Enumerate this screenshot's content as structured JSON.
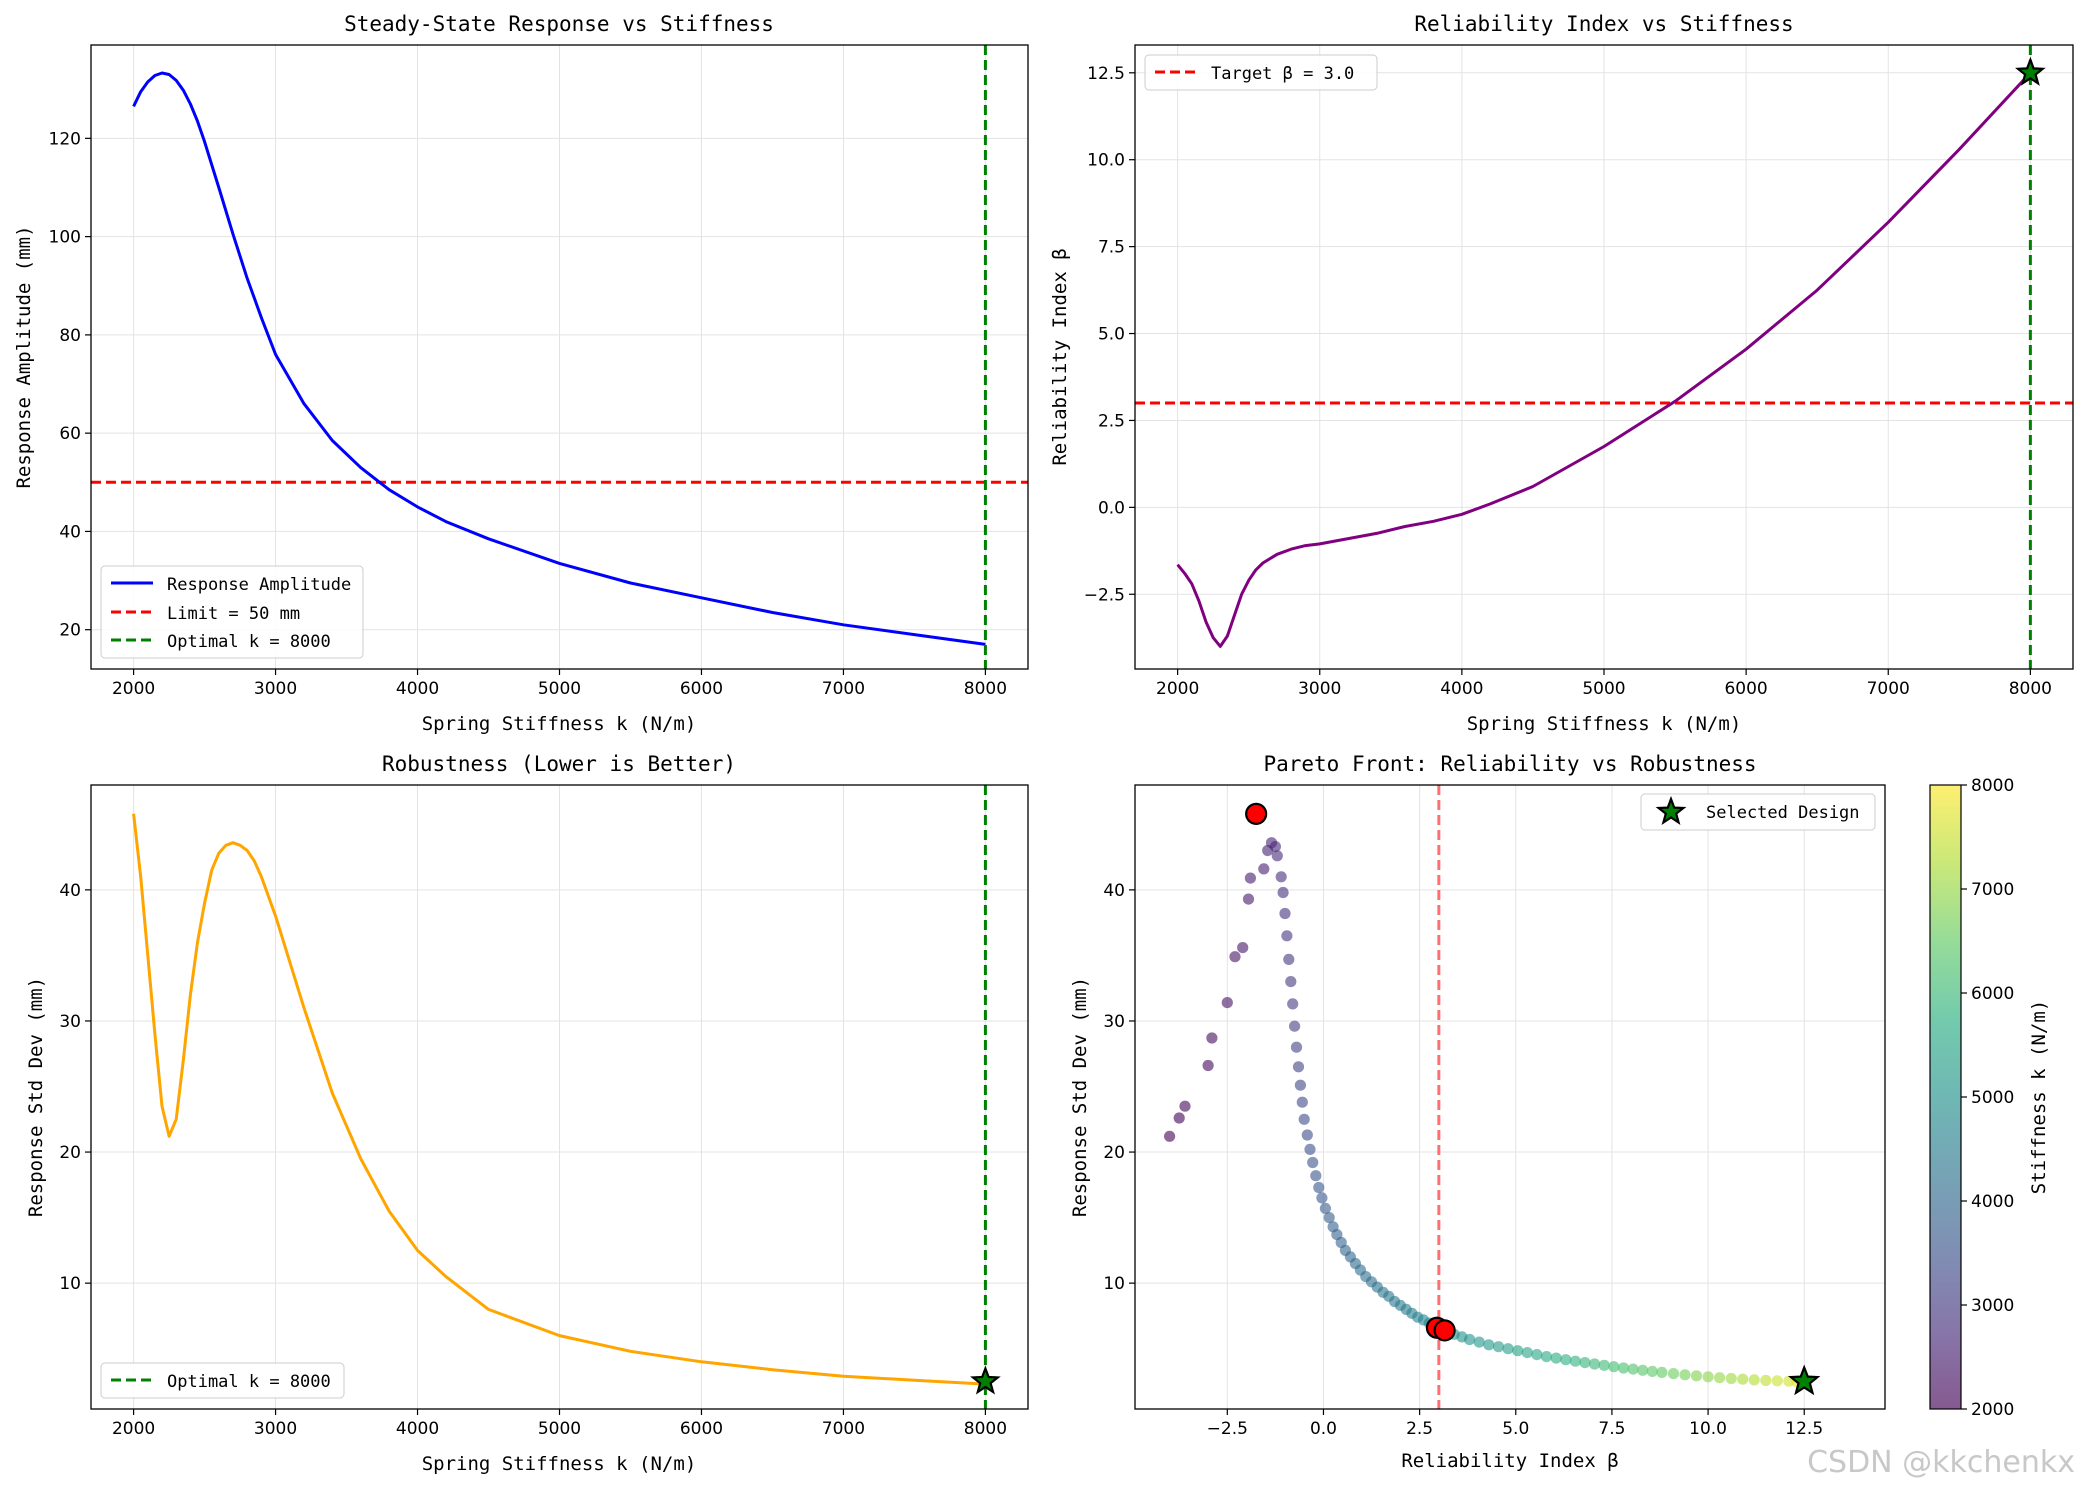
{
  "watermark": "CSDN @kkchenkx",
  "chart_data": [
    {
      "id": "p1",
      "type": "line",
      "title": "Steady-State Response vs Stiffness",
      "xlabel": "Spring Stiffness k (N/m)",
      "ylabel": "Response Amplitude (mm)",
      "xlim": [
        1700,
        8300
      ],
      "ylim": [
        12,
        139
      ],
      "xticks": [
        2000,
        3000,
        4000,
        5000,
        6000,
        7000,
        8000
      ],
      "yticks": [
        20,
        40,
        60,
        80,
        100,
        120
      ],
      "series": [
        {
          "name": "Response Amplitude",
          "color": "#0000ff",
          "x": [
            2000,
            2050,
            2100,
            2150,
            2200,
            2250,
            2300,
            2350,
            2400,
            2450,
            2500,
            2600,
            2700,
            2800,
            2900,
            3000,
            3200,
            3400,
            3600,
            3800,
            4000,
            4200,
            4500,
            5000,
            5500,
            6000,
            6500,
            7000,
            7500,
            8000
          ],
          "y": [
            126.5,
            129.5,
            131.5,
            132.8,
            133.3,
            133.0,
            131.8,
            129.8,
            127.0,
            123.5,
            119.3,
            110.0,
            100.5,
            91.5,
            83.5,
            76.0,
            66.0,
            58.5,
            53.0,
            48.5,
            45.0,
            42.0,
            38.5,
            33.5,
            29.5,
            26.5,
            23.5,
            21.0,
            19.0,
            17.0
          ]
        }
      ],
      "hlines": [
        {
          "name": "Limit = 50 mm",
          "y": 50,
          "color": "#ff0000"
        }
      ],
      "vlines": [
        {
          "name": "Optimal k = 8000",
          "x": 8000,
          "color": "#008000"
        }
      ],
      "legend": {
        "position": "lower-left",
        "entries": [
          {
            "label": "Response Amplitude",
            "color": "#0000ff",
            "style": "solid"
          },
          {
            "label": "Limit = 50 mm",
            "color": "#ff0000",
            "style": "dashed"
          },
          {
            "label": "Optimal k = 8000",
            "color": "#008000",
            "style": "dashed"
          }
        ]
      }
    },
    {
      "id": "p2",
      "type": "line",
      "title": "Reliability Index vs Stiffness",
      "xlabel": "Spring Stiffness k (N/m)",
      "ylabel": "Reliability Index β",
      "xlim": [
        1700,
        8300
      ],
      "ylim": [
        -4.65,
        13.3
      ],
      "xticks": [
        2000,
        3000,
        4000,
        5000,
        6000,
        7000,
        8000
      ],
      "yticks": [
        -2.5,
        0.0,
        2.5,
        5.0,
        7.5,
        10.0,
        12.5
      ],
      "ytick_labels": [
        "−2.5",
        "0.0",
        "2.5",
        "5.0",
        "7.5",
        "10.0",
        "12.5"
      ],
      "series": [
        {
          "name": "Reliability Index β",
          "color": "#800080",
          "x": [
            2000,
            2050,
            2100,
            2150,
            2200,
            2250,
            2300,
            2350,
            2400,
            2450,
            2500,
            2550,
            2600,
            2700,
            2800,
            2900,
            3000,
            3200,
            3400,
            3600,
            3800,
            4000,
            4200,
            4500,
            5000,
            5500,
            6000,
            6500,
            7000,
            7500,
            8000
          ],
          "y": [
            -1.65,
            -1.9,
            -2.2,
            -2.7,
            -3.3,
            -3.75,
            -4.0,
            -3.7,
            -3.1,
            -2.5,
            -2.1,
            -1.8,
            -1.6,
            -1.35,
            -1.2,
            -1.1,
            -1.05,
            -0.9,
            -0.75,
            -0.55,
            -0.4,
            -0.2,
            0.1,
            0.6,
            1.75,
            3.05,
            4.55,
            6.25,
            8.2,
            10.3,
            12.5
          ]
        }
      ],
      "hlines": [
        {
          "name": "Target β = 3.0",
          "y": 3.0,
          "color": "#ff0000"
        }
      ],
      "vlines": [
        {
          "name": "Optimal k",
          "x": 8000,
          "color": "#008000"
        }
      ],
      "markers": [
        {
          "x": 8000,
          "y": 12.5,
          "shape": "star",
          "color": "#008000"
        }
      ],
      "legend": {
        "position": "upper-left",
        "entries": [
          {
            "label": "Target β = 3.0",
            "color": "#ff0000",
            "style": "dashed"
          }
        ]
      }
    },
    {
      "id": "p3",
      "type": "line",
      "title": "Robustness (Lower is Better)",
      "xlabel": "Spring Stiffness k (N/m)",
      "ylabel": "Response Std Dev (mm)",
      "xlim": [
        1700,
        8300
      ],
      "ylim": [
        0.4,
        48.0
      ],
      "xticks": [
        2000,
        3000,
        4000,
        5000,
        6000,
        7000,
        8000
      ],
      "yticks": [
        10,
        20,
        30,
        40
      ],
      "series": [
        {
          "name": "Response Std Dev",
          "color": "#ffa500",
          "x": [
            2000,
            2050,
            2100,
            2150,
            2200,
            2250,
            2300,
            2350,
            2400,
            2450,
            2500,
            2550,
            2600,
            2650,
            2700,
            2750,
            2800,
            2850,
            2900,
            3000,
            3200,
            3400,
            3600,
            3800,
            4000,
            4200,
            4500,
            5000,
            5500,
            6000,
            6500,
            7000,
            7500,
            8000
          ],
          "y": [
            45.8,
            41.0,
            35.0,
            29.0,
            23.5,
            21.2,
            22.5,
            27.0,
            32.0,
            36.0,
            39.0,
            41.5,
            42.8,
            43.4,
            43.6,
            43.4,
            43.0,
            42.2,
            41.0,
            38.0,
            31.0,
            24.5,
            19.5,
            15.5,
            12.5,
            10.5,
            8.0,
            6.0,
            4.8,
            4.0,
            3.4,
            2.9,
            2.6,
            2.3
          ]
        }
      ],
      "vlines": [
        {
          "name": "Optimal k = 8000",
          "x": 8000,
          "color": "#008000"
        }
      ],
      "markers": [
        {
          "x": 8000,
          "y": 2.5,
          "shape": "star",
          "color": "#008000"
        }
      ],
      "legend": {
        "position": "lower-left",
        "entries": [
          {
            "label": "Optimal k = 8000",
            "color": "#008000",
            "style": "dashed"
          }
        ]
      }
    },
    {
      "id": "p4",
      "type": "scatter",
      "title": "Pareto Front: Reliability vs Robustness",
      "xlabel": "Reliability Index β",
      "ylabel": "Response Std Dev (mm)",
      "xlim": [
        -4.9,
        14.6
      ],
      "ylim": [
        0.4,
        48.0
      ],
      "xticks": [
        -2.5,
        0.0,
        2.5,
        5.0,
        7.5,
        10.0,
        12.5
      ],
      "xtick_labels": [
        "−2.5",
        "0.0",
        "2.5",
        "5.0",
        "7.5",
        "10.0",
        "12.5"
      ],
      "yticks": [
        10,
        20,
        30,
        40
      ],
      "colorbar": {
        "label": "Stiffness k (N/m)",
        "min": 2000,
        "max": 8000,
        "ticks": [
          2000,
          3000,
          4000,
          5000,
          6000,
          7000,
          8000
        ],
        "colormap": "viridis"
      },
      "vline": {
        "x": 3.0,
        "color": "#ff7070"
      },
      "highlight_points": [
        {
          "x": -1.75,
          "y": 45.8
        },
        {
          "x": 2.95,
          "y": 6.6
        },
        {
          "x": 3.15,
          "y": 6.4
        }
      ],
      "selected": {
        "x": 12.5,
        "y": 2.5,
        "label": "Selected Design"
      },
      "legend": {
        "position": "upper-right",
        "entries": [
          {
            "label": "Selected Design",
            "shape": "star",
            "color": "#008000"
          }
        ]
      },
      "points": [
        {
          "k": 2000,
          "beta": -4.0,
          "sd": 21.2
        },
        {
          "k": 2050,
          "beta": -3.75,
          "sd": 22.6
        },
        {
          "k": 2100,
          "beta": -3.6,
          "sd": 23.5
        },
        {
          "k": 2150,
          "beta": -3.0,
          "sd": 26.6
        },
        {
          "k": 2200,
          "beta": -2.9,
          "sd": 28.7
        },
        {
          "k": 2250,
          "beta": -2.5,
          "sd": 31.4
        },
        {
          "k": 2300,
          "beta": -2.3,
          "sd": 34.9
        },
        {
          "k": 2350,
          "beta": -2.1,
          "sd": 35.6
        },
        {
          "k": 2400,
          "beta": -1.95,
          "sd": 39.3
        },
        {
          "k": 2450,
          "beta": -1.9,
          "sd": 40.9
        },
        {
          "k": 2500,
          "beta": -1.55,
          "sd": 41.6
        },
        {
          "k": 2550,
          "beta": -1.45,
          "sd": 43.0
        },
        {
          "k": 2600,
          "beta": -1.35,
          "sd": 43.6
        },
        {
          "k": 2650,
          "beta": -1.25,
          "sd": 43.3
        },
        {
          "k": 2700,
          "beta": -1.2,
          "sd": 42.6
        },
        {
          "k": 2750,
          "beta": -1.1,
          "sd": 41.0
        },
        {
          "k": 2800,
          "beta": -1.05,
          "sd": 39.8
        },
        {
          "k": 2850,
          "beta": -1.0,
          "sd": 38.2
        },
        {
          "k": 2900,
          "beta": -0.95,
          "sd": 36.5
        },
        {
          "k": 2950,
          "beta": -0.9,
          "sd": 34.7
        },
        {
          "k": 3000,
          "beta": -0.85,
          "sd": 33.0
        },
        {
          "k": 3050,
          "beta": -0.8,
          "sd": 31.3
        },
        {
          "k": 3100,
          "beta": -0.75,
          "sd": 29.6
        },
        {
          "k": 3150,
          "beta": -0.7,
          "sd": 28.0
        },
        {
          "k": 3200,
          "beta": -0.65,
          "sd": 26.5
        },
        {
          "k": 3250,
          "beta": -0.6,
          "sd": 25.1
        },
        {
          "k": 3300,
          "beta": -0.55,
          "sd": 23.8
        },
        {
          "k": 3350,
          "beta": -0.5,
          "sd": 22.5
        },
        {
          "k": 3400,
          "beta": -0.42,
          "sd": 21.3
        },
        {
          "k": 3450,
          "beta": -0.35,
          "sd": 20.2
        },
        {
          "k": 3500,
          "beta": -0.28,
          "sd": 19.2
        },
        {
          "k": 3550,
          "beta": -0.2,
          "sd": 18.2
        },
        {
          "k": 3600,
          "beta": -0.12,
          "sd": 17.3
        },
        {
          "k": 3650,
          "beta": -0.04,
          "sd": 16.5
        },
        {
          "k": 3700,
          "beta": 0.05,
          "sd": 15.7
        },
        {
          "k": 3750,
          "beta": 0.15,
          "sd": 15.0
        },
        {
          "k": 3800,
          "beta": 0.25,
          "sd": 14.3
        },
        {
          "k": 3850,
          "beta": 0.35,
          "sd": 13.7
        },
        {
          "k": 3900,
          "beta": 0.46,
          "sd": 13.1
        },
        {
          "k": 3950,
          "beta": 0.57,
          "sd": 12.5
        },
        {
          "k": 4000,
          "beta": 0.7,
          "sd": 12.0
        },
        {
          "k": 4050,
          "beta": 0.83,
          "sd": 11.5
        },
        {
          "k": 4100,
          "beta": 0.96,
          "sd": 11.0
        },
        {
          "k": 4150,
          "beta": 1.1,
          "sd": 10.5
        },
        {
          "k": 4200,
          "beta": 1.25,
          "sd": 10.1
        },
        {
          "k": 4250,
          "beta": 1.4,
          "sd": 9.7
        },
        {
          "k": 4300,
          "beta": 1.55,
          "sd": 9.3
        },
        {
          "k": 4350,
          "beta": 1.7,
          "sd": 9.0
        },
        {
          "k": 4400,
          "beta": 1.85,
          "sd": 8.6
        },
        {
          "k": 4450,
          "beta": 2.0,
          "sd": 8.3
        },
        {
          "k": 4500,
          "beta": 2.15,
          "sd": 8.0
        },
        {
          "k": 4550,
          "beta": 2.3,
          "sd": 7.7
        },
        {
          "k": 4600,
          "beta": 2.45,
          "sd": 7.4
        },
        {
          "k": 4650,
          "beta": 2.6,
          "sd": 7.2
        },
        {
          "k": 4700,
          "beta": 2.75,
          "sd": 6.95
        },
        {
          "k": 4750,
          "beta": 2.9,
          "sd": 6.7
        },
        {
          "k": 4800,
          "beta": 3.05,
          "sd": 6.5
        },
        {
          "k": 4850,
          "beta": 3.2,
          "sd": 6.3
        },
        {
          "k": 4900,
          "beta": 3.4,
          "sd": 6.1
        },
        {
          "k": 4950,
          "beta": 3.6,
          "sd": 5.9
        },
        {
          "k": 5000,
          "beta": 3.8,
          "sd": 5.7
        },
        {
          "k": 5075,
          "beta": 4.05,
          "sd": 5.5
        },
        {
          "k": 5150,
          "beta": 4.3,
          "sd": 5.3
        },
        {
          "k": 5225,
          "beta": 4.55,
          "sd": 5.15
        },
        {
          "k": 5300,
          "beta": 4.8,
          "sd": 5.0
        },
        {
          "k": 5375,
          "beta": 5.05,
          "sd": 4.85
        },
        {
          "k": 5450,
          "beta": 5.3,
          "sd": 4.7
        },
        {
          "k": 5525,
          "beta": 5.55,
          "sd": 4.55
        },
        {
          "k": 5600,
          "beta": 5.8,
          "sd": 4.4
        },
        {
          "k": 5675,
          "beta": 6.05,
          "sd": 4.28
        },
        {
          "k": 5750,
          "beta": 6.3,
          "sd": 4.16
        },
        {
          "k": 5825,
          "beta": 6.55,
          "sd": 4.05
        },
        {
          "k": 5900,
          "beta": 6.8,
          "sd": 3.94
        },
        {
          "k": 5975,
          "beta": 7.05,
          "sd": 3.83
        },
        {
          "k": 6050,
          "beta": 7.3,
          "sd": 3.73
        },
        {
          "k": 6125,
          "beta": 7.55,
          "sd": 3.63
        },
        {
          "k": 6200,
          "beta": 7.8,
          "sd": 3.53
        },
        {
          "k": 6275,
          "beta": 8.05,
          "sd": 3.44
        },
        {
          "k": 6350,
          "beta": 8.3,
          "sd": 3.35
        },
        {
          "k": 6425,
          "beta": 8.55,
          "sd": 3.27
        },
        {
          "k": 6500,
          "beta": 8.8,
          "sd": 3.19
        },
        {
          "k": 6600,
          "beta": 9.1,
          "sd": 3.1
        },
        {
          "k": 6700,
          "beta": 9.4,
          "sd": 3.01
        },
        {
          "k": 6800,
          "beta": 9.7,
          "sd": 2.93
        },
        {
          "k": 6900,
          "beta": 10.0,
          "sd": 2.86
        },
        {
          "k": 7000,
          "beta": 10.3,
          "sd": 2.79
        },
        {
          "k": 7100,
          "beta": 10.6,
          "sd": 2.73
        },
        {
          "k": 7200,
          "beta": 10.9,
          "sd": 2.67
        },
        {
          "k": 7300,
          "beta": 11.2,
          "sd": 2.62
        },
        {
          "k": 7400,
          "beta": 11.5,
          "sd": 2.58
        },
        {
          "k": 7500,
          "beta": 11.8,
          "sd": 2.55
        },
        {
          "k": 7600,
          "beta": 12.1,
          "sd": 2.52
        },
        {
          "k": 7800,
          "beta": 12.3,
          "sd": 2.5
        },
        {
          "k": 8000,
          "beta": 12.5,
          "sd": 2.48
        }
      ]
    }
  ]
}
